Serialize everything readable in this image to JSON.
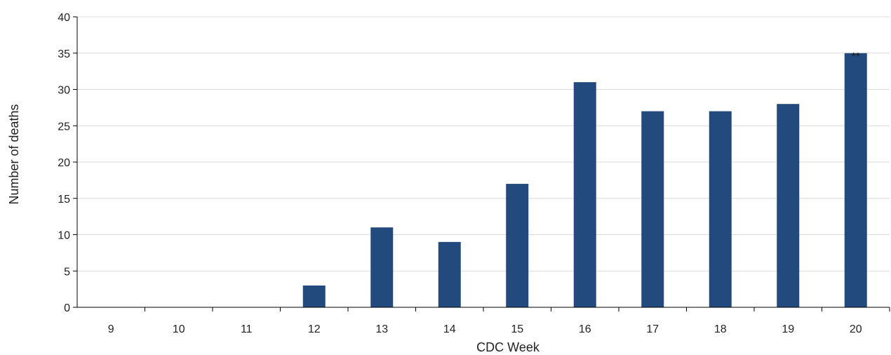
{
  "chart_data": {
    "type": "bar",
    "categories": [
      "9",
      "10",
      "11",
      "12",
      "13",
      "14",
      "15",
      "16",
      "17",
      "18",
      "19",
      "20"
    ],
    "values": [
      0,
      0,
      0,
      3,
      11,
      9,
      17,
      31,
      27,
      27,
      28,
      35
    ],
    "xlabel": "CDC Week",
    "ylabel": "Number of deaths",
    "ylim": [
      0,
      40
    ],
    "yticks": [
      0,
      5,
      10,
      15,
      20,
      25,
      30,
      35,
      40
    ],
    "grid": true,
    "bar_color": "#234a7d",
    "grid_color": "#d9d9d9",
    "axis_color": "#000000",
    "annotations": [
      {
        "category": "20",
        "text": "**"
      }
    ]
  }
}
